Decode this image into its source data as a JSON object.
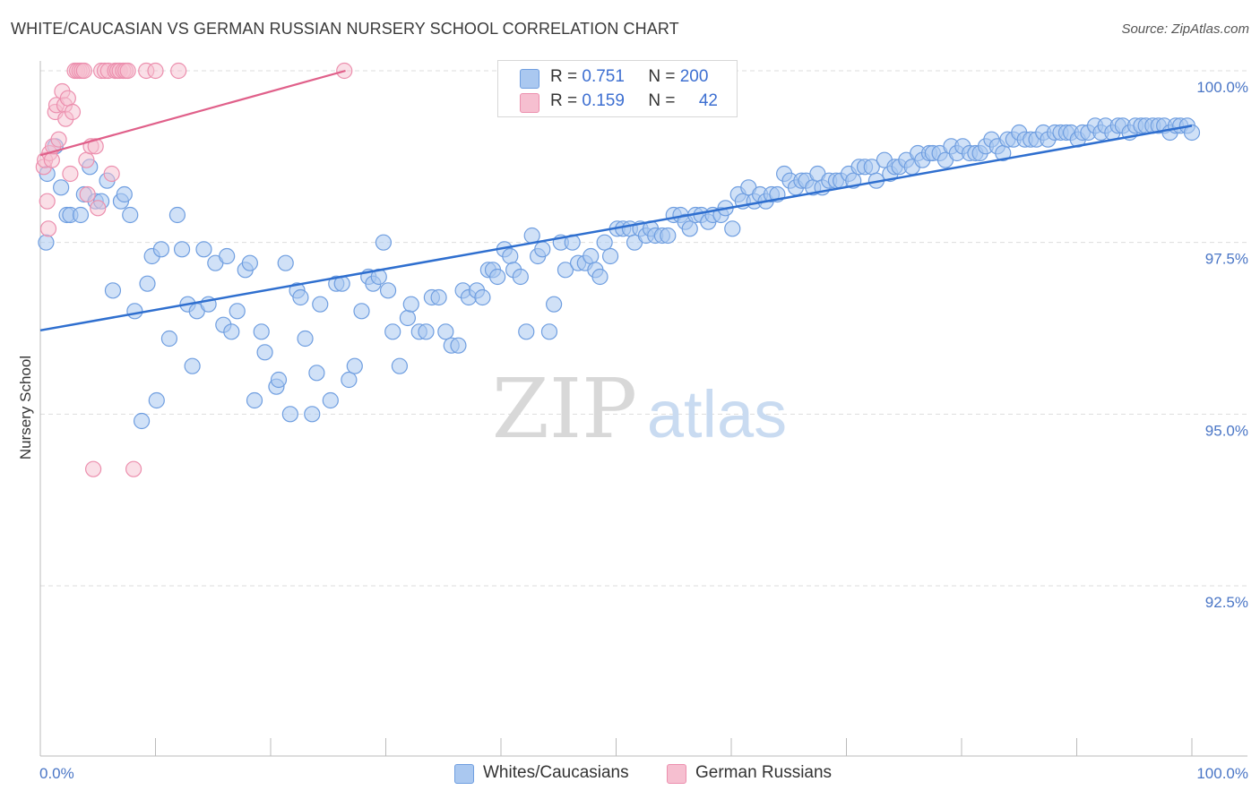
{
  "title": "WHITE/CAUCASIAN VS GERMAN RUSSIAN NURSERY SCHOOL CORRELATION CHART",
  "source": "Source: ZipAtlas.com",
  "watermark": {
    "zip": "ZIP",
    "atlas": "atlas"
  },
  "legend": {
    "rows": [
      {
        "r_label": "R =",
        "r_value": "0.751",
        "n_label": "N =",
        "n_value": "200"
      },
      {
        "r_label": "R =",
        "r_value": "0.159",
        "n_label": "N =",
        "n_value": "42"
      }
    ]
  },
  "bottom_legend": {
    "series1": "Whites/Caucasians",
    "series2": "German Russians"
  },
  "colors": {
    "blue_fill": "#aac8f0",
    "blue_stroke": "#6f9ee0",
    "blue_line": "#2f6fcf",
    "pink_fill": "#f6bfd0",
    "pink_stroke": "#ec8fae",
    "pink_line": "#e0608a",
    "tick_label": "#4a76c6",
    "grid": "#dddddd"
  },
  "chart_data": {
    "type": "scatter",
    "title": "WHITE/CAUCASIAN VS GERMAN RUSSIAN NURSERY SCHOOL CORRELATION CHART",
    "xlabel": "",
    "ylabel": "Nursery School",
    "xlim": [
      0,
      100
    ],
    "ylim": [
      90.0,
      100.2
    ],
    "x_tick_labels": [
      "0.0%",
      "100.0%"
    ],
    "y_ticks": [
      92.5,
      95.0,
      97.5,
      100.0
    ],
    "y_tick_labels": [
      "92.5%",
      "95.0%",
      "97.5%",
      "100.0%"
    ],
    "grid": true,
    "legend_position": "top-center",
    "series": [
      {
        "name": "Whites/Caucasians",
        "R": 0.751,
        "N": 200,
        "trend": {
          "x": [
            0,
            100
          ],
          "y": [
            96.22,
            99.2
          ]
        },
        "points": [
          [
            0.5,
            97.5
          ],
          [
            0.6,
            98.5
          ],
          [
            1.3,
            98.9
          ],
          [
            1.8,
            98.3
          ],
          [
            2.3,
            97.9
          ],
          [
            2.6,
            97.9
          ],
          [
            3.5,
            97.9
          ],
          [
            3.8,
            98.2
          ],
          [
            4.3,
            98.6
          ],
          [
            4.8,
            98.1
          ],
          [
            5.3,
            98.1
          ],
          [
            5.8,
            98.4
          ],
          [
            6.3,
            96.8
          ],
          [
            7.0,
            98.1
          ],
          [
            7.3,
            98.2
          ],
          [
            7.8,
            97.9
          ],
          [
            8.2,
            96.5
          ],
          [
            8.8,
            94.9
          ],
          [
            9.3,
            96.9
          ],
          [
            9.7,
            97.3
          ],
          [
            10.1,
            95.2
          ],
          [
            10.5,
            97.4
          ],
          [
            11.2,
            96.1
          ],
          [
            11.9,
            97.9
          ],
          [
            12.3,
            97.4
          ],
          [
            12.8,
            96.6
          ],
          [
            13.2,
            95.7
          ],
          [
            13.6,
            96.5
          ],
          [
            14.2,
            97.4
          ],
          [
            14.6,
            96.6
          ],
          [
            15.2,
            97.2
          ],
          [
            15.9,
            96.3
          ],
          [
            16.2,
            97.3
          ],
          [
            16.6,
            96.2
          ],
          [
            17.1,
            96.5
          ],
          [
            17.8,
            97.1
          ],
          [
            18.2,
            97.2
          ],
          [
            18.6,
            95.2
          ],
          [
            19.2,
            96.2
          ],
          [
            19.5,
            95.9
          ],
          [
            20.5,
            95.4
          ],
          [
            20.7,
            95.5
          ],
          [
            21.3,
            97.2
          ],
          [
            21.7,
            95.0
          ],
          [
            22.3,
            96.8
          ],
          [
            22.6,
            96.7
          ],
          [
            23.0,
            96.1
          ],
          [
            23.6,
            95.0
          ],
          [
            24.0,
            95.6
          ],
          [
            24.3,
            96.6
          ],
          [
            25.2,
            95.2
          ],
          [
            25.7,
            96.9
          ],
          [
            26.2,
            96.9
          ],
          [
            26.8,
            95.5
          ],
          [
            27.3,
            95.7
          ],
          [
            27.9,
            96.5
          ],
          [
            28.5,
            97.0
          ],
          [
            28.9,
            96.9
          ],
          [
            29.4,
            97.0
          ],
          [
            29.8,
            97.5
          ],
          [
            30.2,
            96.8
          ],
          [
            30.6,
            96.2
          ],
          [
            31.2,
            95.7
          ],
          [
            31.9,
            96.4
          ],
          [
            32.2,
            96.6
          ],
          [
            32.9,
            96.2
          ],
          [
            33.5,
            96.2
          ],
          [
            34.0,
            96.7
          ],
          [
            34.6,
            96.7
          ],
          [
            35.2,
            96.2
          ],
          [
            35.7,
            96.0
          ],
          [
            36.3,
            96.0
          ],
          [
            36.7,
            96.8
          ],
          [
            37.2,
            96.7
          ],
          [
            37.9,
            96.8
          ],
          [
            38.4,
            96.7
          ],
          [
            38.9,
            97.1
          ],
          [
            39.3,
            97.1
          ],
          [
            39.7,
            97.0
          ],
          [
            40.3,
            97.4
          ],
          [
            40.8,
            97.3
          ],
          [
            41.1,
            97.1
          ],
          [
            41.7,
            97.0
          ],
          [
            42.2,
            96.2
          ],
          [
            42.7,
            97.6
          ],
          [
            43.2,
            97.3
          ],
          [
            43.6,
            97.4
          ],
          [
            44.2,
            96.2
          ],
          [
            44.6,
            96.6
          ],
          [
            45.2,
            97.5
          ],
          [
            45.6,
            97.1
          ],
          [
            46.2,
            97.5
          ],
          [
            46.7,
            97.2
          ],
          [
            47.3,
            97.2
          ],
          [
            47.8,
            97.3
          ],
          [
            48.2,
            97.1
          ],
          [
            48.6,
            97.0
          ],
          [
            49.0,
            97.5
          ],
          [
            49.5,
            97.3
          ],
          [
            50.1,
            97.7
          ],
          [
            50.6,
            97.7
          ],
          [
            51.2,
            97.7
          ],
          [
            51.6,
            97.5
          ],
          [
            52.1,
            97.7
          ],
          [
            52.6,
            97.6
          ],
          [
            53.0,
            97.7
          ],
          [
            53.4,
            97.6
          ],
          [
            54.0,
            97.6
          ],
          [
            54.5,
            97.6
          ],
          [
            55.0,
            97.9
          ],
          [
            55.6,
            97.9
          ],
          [
            56.0,
            97.8
          ],
          [
            56.4,
            97.7
          ],
          [
            56.9,
            97.9
          ],
          [
            57.4,
            97.9
          ],
          [
            58.0,
            97.8
          ],
          [
            58.4,
            97.9
          ],
          [
            59.1,
            97.9
          ],
          [
            59.5,
            98.0
          ],
          [
            60.1,
            97.7
          ],
          [
            60.6,
            98.2
          ],
          [
            61.0,
            98.1
          ],
          [
            61.5,
            98.3
          ],
          [
            62.0,
            98.1
          ],
          [
            62.5,
            98.2
          ],
          [
            63.0,
            98.1
          ],
          [
            63.5,
            98.2
          ],
          [
            64.0,
            98.2
          ],
          [
            64.6,
            98.5
          ],
          [
            65.1,
            98.4
          ],
          [
            65.6,
            98.3
          ],
          [
            66.1,
            98.4
          ],
          [
            66.5,
            98.4
          ],
          [
            67.1,
            98.3
          ],
          [
            67.5,
            98.5
          ],
          [
            67.9,
            98.3
          ],
          [
            68.5,
            98.4
          ],
          [
            69.1,
            98.4
          ],
          [
            69.5,
            98.4
          ],
          [
            70.2,
            98.5
          ],
          [
            70.6,
            98.4
          ],
          [
            71.1,
            98.6
          ],
          [
            71.6,
            98.6
          ],
          [
            72.2,
            98.6
          ],
          [
            72.6,
            98.4
          ],
          [
            73.3,
            98.7
          ],
          [
            73.8,
            98.5
          ],
          [
            74.2,
            98.6
          ],
          [
            74.6,
            98.6
          ],
          [
            75.2,
            98.7
          ],
          [
            75.7,
            98.6
          ],
          [
            76.2,
            98.8
          ],
          [
            76.6,
            98.7
          ],
          [
            77.2,
            98.8
          ],
          [
            77.5,
            98.8
          ],
          [
            78.1,
            98.8
          ],
          [
            78.6,
            98.7
          ],
          [
            79.1,
            98.9
          ],
          [
            79.6,
            98.8
          ],
          [
            80.1,
            98.9
          ],
          [
            80.7,
            98.8
          ],
          [
            81.2,
            98.8
          ],
          [
            81.6,
            98.8
          ],
          [
            82.1,
            98.9
          ],
          [
            82.6,
            99.0
          ],
          [
            83.1,
            98.9
          ],
          [
            83.6,
            98.8
          ],
          [
            84.0,
            99.0
          ],
          [
            84.5,
            99.0
          ],
          [
            85.0,
            99.1
          ],
          [
            85.5,
            99.0
          ],
          [
            86.0,
            99.0
          ],
          [
            86.5,
            99.0
          ],
          [
            87.1,
            99.1
          ],
          [
            87.5,
            99.0
          ],
          [
            88.1,
            99.1
          ],
          [
            88.6,
            99.1
          ],
          [
            89.1,
            99.1
          ],
          [
            89.5,
            99.1
          ],
          [
            90.1,
            99.0
          ],
          [
            90.5,
            99.1
          ],
          [
            91.0,
            99.1
          ],
          [
            91.6,
            99.2
          ],
          [
            92.1,
            99.1
          ],
          [
            92.5,
            99.2
          ],
          [
            93.1,
            99.1
          ],
          [
            93.6,
            99.2
          ],
          [
            94.0,
            99.2
          ],
          [
            94.6,
            99.1
          ],
          [
            95.1,
            99.2
          ],
          [
            95.6,
            99.2
          ],
          [
            96.0,
            99.2
          ],
          [
            96.6,
            99.2
          ],
          [
            97.1,
            99.2
          ],
          [
            97.6,
            99.2
          ],
          [
            98.1,
            99.1
          ],
          [
            98.6,
            99.2
          ],
          [
            99.0,
            99.2
          ],
          [
            99.6,
            99.2
          ],
          [
            100.0,
            99.1
          ]
        ]
      },
      {
        "name": "German Russians",
        "R": 0.159,
        "N": 42,
        "trend": {
          "x": [
            0,
            26.5
          ],
          "y": [
            98.77,
            100.0
          ]
        },
        "points": [
          [
            0.3,
            98.6
          ],
          [
            0.4,
            98.7
          ],
          [
            0.6,
            98.1
          ],
          [
            0.7,
            97.7
          ],
          [
            0.8,
            98.8
          ],
          [
            1.0,
            98.7
          ],
          [
            1.1,
            98.9
          ],
          [
            1.3,
            99.4
          ],
          [
            1.4,
            99.5
          ],
          [
            1.6,
            99.0
          ],
          [
            1.9,
            99.7
          ],
          [
            2.1,
            99.5
          ],
          [
            2.2,
            99.3
          ],
          [
            2.4,
            99.6
          ],
          [
            2.6,
            98.5
          ],
          [
            2.8,
            99.4
          ],
          [
            3.0,
            100.0
          ],
          [
            3.2,
            100.0
          ],
          [
            3.4,
            100.0
          ],
          [
            3.6,
            100.0
          ],
          [
            3.8,
            100.0
          ],
          [
            4.0,
            98.7
          ],
          [
            4.1,
            98.2
          ],
          [
            4.4,
            98.9
          ],
          [
            4.6,
            94.2
          ],
          [
            4.8,
            98.9
          ],
          [
            5.0,
            98.0
          ],
          [
            5.3,
            100.0
          ],
          [
            5.6,
            100.0
          ],
          [
            5.9,
            100.0
          ],
          [
            6.2,
            98.5
          ],
          [
            6.5,
            100.0
          ],
          [
            6.7,
            100.0
          ],
          [
            6.9,
            100.0
          ],
          [
            7.2,
            100.0
          ],
          [
            7.4,
            100.0
          ],
          [
            7.6,
            100.0
          ],
          [
            8.1,
            94.2
          ],
          [
            9.2,
            100.0
          ],
          [
            10.0,
            100.0
          ],
          [
            12.0,
            100.0
          ],
          [
            26.4,
            100.0
          ]
        ]
      }
    ]
  }
}
